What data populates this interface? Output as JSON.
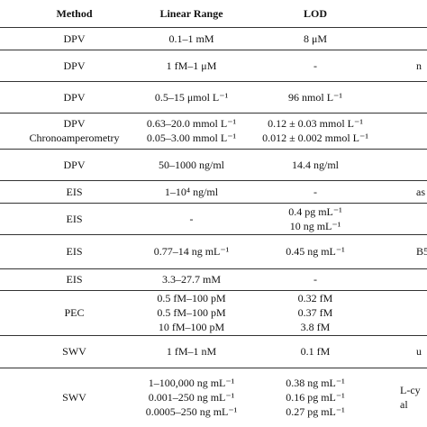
{
  "table": {
    "header": [
      "Method",
      "Linear Range",
      "LOD"
    ],
    "rows": [
      {
        "method": [
          "DPV"
        ],
        "range": [
          "0.1–1 mM"
        ],
        "lod": [
          "8 μM"
        ]
      },
      {
        "method": [
          "DPV"
        ],
        "range": [
          "1 fM–1 μM"
        ],
        "lod": [
          "-"
        ],
        "right": [
          "n"
        ]
      },
      {
        "method": [
          "DPV"
        ],
        "range": [
          "0.5–15 μmol L⁻¹"
        ],
        "lod": [
          "96 nmol L⁻¹"
        ]
      },
      {
        "method": [
          "DPV",
          "Chronoamperometry"
        ],
        "range": [
          "0.63–20.0 mmol L⁻¹",
          "0.05–3.00 mmol L⁻¹"
        ],
        "lod": [
          "0.12 ± 0.03 mmol L⁻¹",
          "0.012 ± 0.002 mmol L⁻¹"
        ]
      },
      {
        "method": [
          "DPV"
        ],
        "range": [
          "50–1000 ng/ml"
        ],
        "lod": [
          "14.4 ng/ml"
        ]
      },
      {
        "method": [
          "EIS"
        ],
        "range": [
          "1–10⁴ ng/ml"
        ],
        "lod": [
          "-"
        ],
        "right": [
          "as"
        ]
      },
      {
        "method": [
          "EIS"
        ],
        "range": [
          "-"
        ],
        "lod": [
          "0.4 pg mL⁻¹",
          "10 ng mL⁻¹"
        ]
      },
      {
        "method": [
          "EIS"
        ],
        "range": [
          "0.77–14 ng mL⁻¹"
        ],
        "lod": [
          "0.45 ng mL⁻¹"
        ],
        "right": [
          "B5"
        ]
      },
      {
        "method": [
          "EIS"
        ],
        "range": [
          "3.3–27.7 mM"
        ],
        "lod": [
          "-"
        ]
      },
      {
        "method": [
          "PEC"
        ],
        "range": [
          "0.5 fM–100 pM",
          "0.5 fM–100 pM",
          "10 fM–100 pM"
        ],
        "lod": [
          "0.32 fM",
          "0.37 fM",
          "3.8 fM"
        ]
      },
      {
        "method": [
          "SWV"
        ],
        "range": [
          "1 fM–1 nM"
        ],
        "lod": [
          "0.1 fM"
        ],
        "right": [
          "u"
        ]
      },
      {
        "method": [
          "SWV"
        ],
        "range": [
          "1–100,000 ng mL⁻¹",
          "0.001–250 ng mL⁻¹",
          "0.0005–250 ng mL⁻¹"
        ],
        "lod": [
          "0.38 ng mL⁻¹",
          "0.16 pg mL⁻¹",
          "0.27 pg mL⁻¹"
        ],
        "right": [
          "L-cy",
          "al"
        ]
      }
    ]
  }
}
